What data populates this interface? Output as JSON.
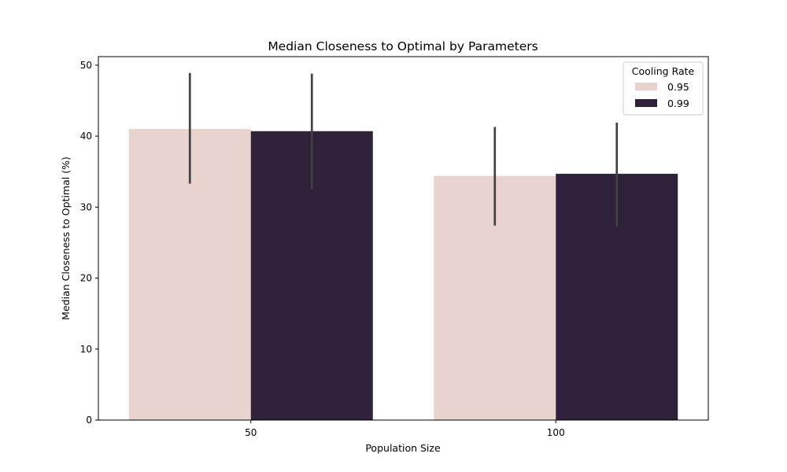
{
  "chart_data": {
    "type": "bar",
    "title": "Median Closeness to Optimal by Parameters",
    "xlabel": "Population Size",
    "ylabel": "Median Closeness to Optimal (%)",
    "categories": [
      "50",
      "100"
    ],
    "ylim": [
      0,
      51.2
    ],
    "yticks": [
      0,
      10,
      20,
      30,
      40,
      50
    ],
    "grid": false,
    "legend": {
      "title": "Cooling Rate",
      "placement": "top-right"
    },
    "series": [
      {
        "name": "0.95",
        "color": "#e8d3cf",
        "values": [
          41.0,
          34.4
        ],
        "error_low": [
          33.3,
          27.4
        ],
        "error_high": [
          48.9,
          41.3
        ]
      },
      {
        "name": "0.99",
        "color": "#2e2139",
        "values": [
          40.7,
          34.7
        ],
        "error_low": [
          32.5,
          27.3
        ],
        "error_high": [
          48.8,
          41.9
        ]
      }
    ],
    "error_bar_color": "#424242"
  }
}
